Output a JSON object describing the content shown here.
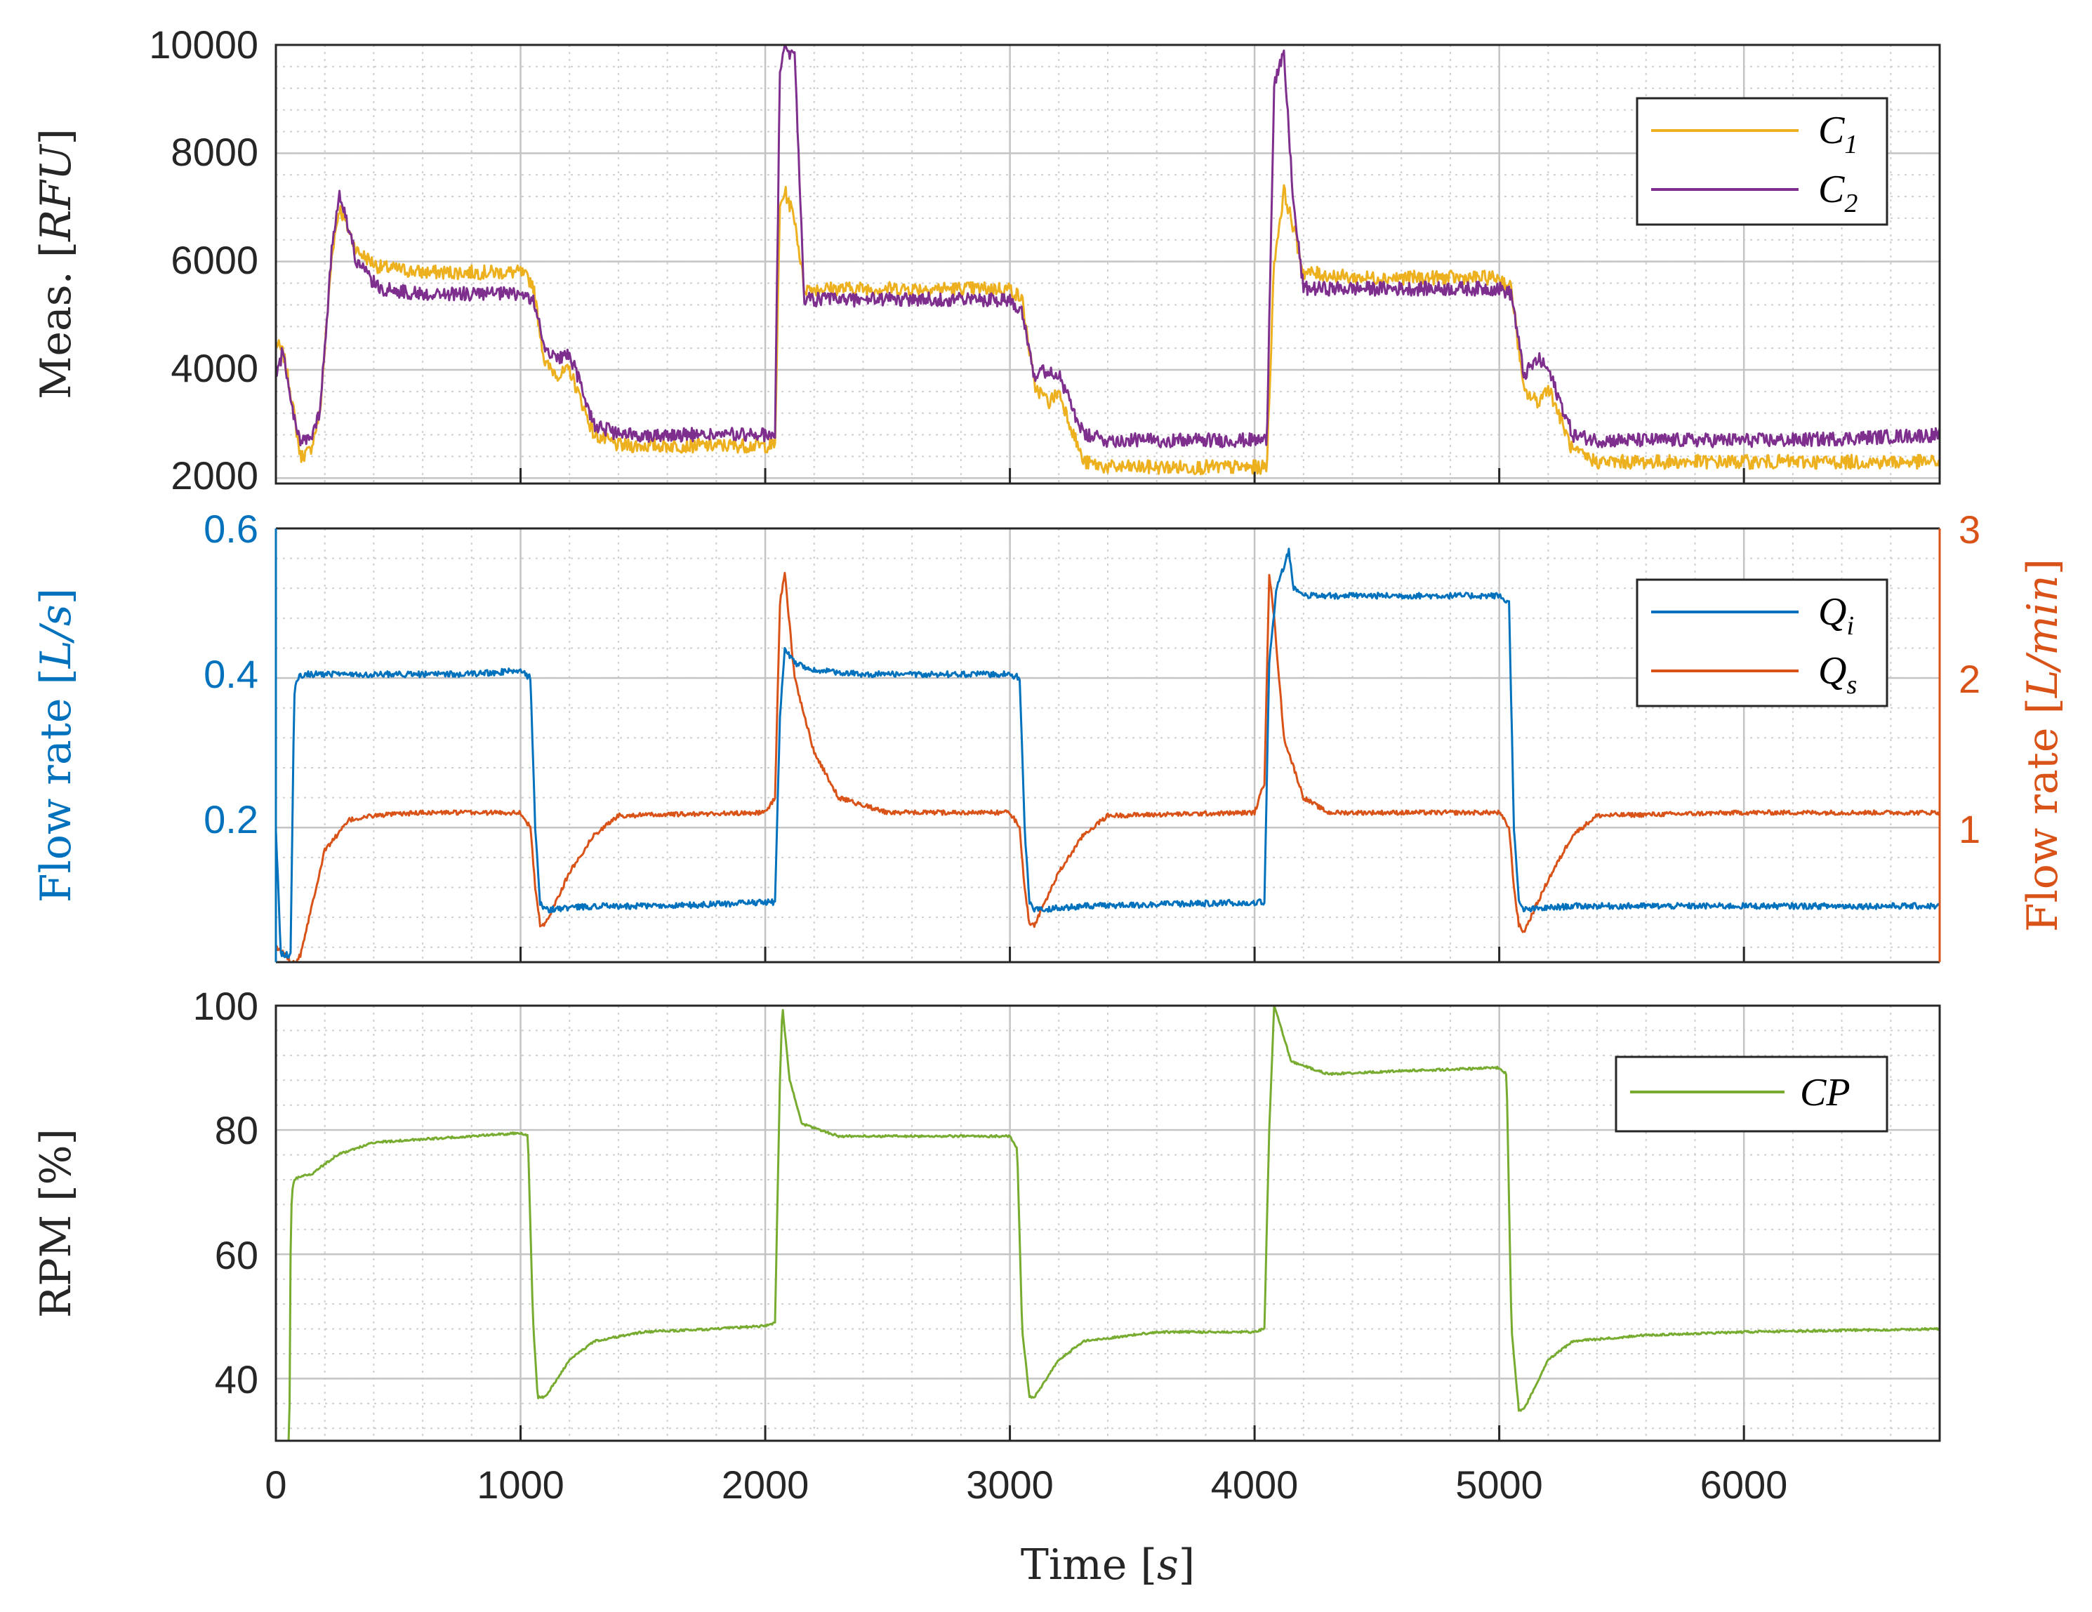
{
  "colors": {
    "C1": "#EDB120",
    "C2": "#7E2F8E",
    "Qi": "#0072BD",
    "Qs": "#D95319",
    "CP": "#77AC30",
    "axis": "#262626"
  },
  "xaxis": {
    "label": "Time",
    "unit": "s",
    "lim": [
      0,
      6800
    ],
    "ticks": [
      "0",
      "1000",
      "2000",
      "3000",
      "4000",
      "5000",
      "6000"
    ]
  },
  "panels": {
    "meas": {
      "ylabel_text": "Meas.",
      "ylabel_unit": "RFU",
      "ylim": [
        1900,
        10000
      ],
      "ticks": [
        "2000",
        "4000",
        "6000",
        "8000",
        "10000"
      ],
      "legend": [
        {
          "base": "C",
          "sub": "1"
        },
        {
          "base": "C",
          "sub": "2"
        }
      ]
    },
    "flow": {
      "ylabel_left_text": "Flow rate",
      "ylabel_left_unit": "L/s",
      "ylim_left": [
        0.02,
        0.6
      ],
      "ticks_left": [
        "0.2",
        "0.4",
        "0.6"
      ],
      "ylabel_right_text": "Flow rate",
      "ylabel_right_unit": "L/min",
      "ylim_right": [
        0.1,
        3
      ],
      "ticks_right": [
        "1",
        "2",
        "3"
      ],
      "legend": [
        {
          "base": "Q",
          "sub": "i"
        },
        {
          "base": "Q",
          "sub": "s"
        }
      ]
    },
    "rpm": {
      "ylabel_text": "RPM [%]",
      "ylim": [
        30,
        100
      ],
      "ticks": [
        "40",
        "60",
        "80",
        "100"
      ],
      "legend": [
        {
          "base": "CP",
          "sub": ""
        }
      ]
    }
  },
  "chart_data": [
    {
      "type": "line",
      "ylabel": "Meas. [RFU]",
      "series": [
        {
          "name": "C1",
          "x": [
            0,
            30,
            60,
            100,
            140,
            180,
            230,
            260,
            330,
            420,
            600,
            800,
            1000,
            1050,
            1100,
            1160,
            1200,
            1300,
            1400,
            1600,
            1800,
            2040,
            2060,
            2080,
            2120,
            2160,
            2200,
            2300,
            2600,
            3000,
            3050,
            3100,
            3160,
            3200,
            3300,
            3400,
            3700,
            4000,
            4050,
            4080,
            4120,
            4160,
            4200,
            4400,
            4800,
            5000,
            5050,
            5100,
            5160,
            5200,
            5300,
            5400,
            5800,
            6200,
            6800
          ],
          "y": [
            4500,
            4300,
            3600,
            2400,
            2500,
            3200,
            6200,
            7000,
            6200,
            5900,
            5800,
            5800,
            5800,
            5600,
            4100,
            3900,
            4000,
            2800,
            2600,
            2600,
            2600,
            2600,
            7000,
            7300,
            6800,
            5500,
            5500,
            5500,
            5500,
            5500,
            5300,
            3700,
            3400,
            3600,
            2300,
            2200,
            2200,
            2200,
            2200,
            6000,
            7300,
            6600,
            5800,
            5700,
            5700,
            5700,
            5500,
            3600,
            3400,
            3700,
            2500,
            2300,
            2300,
            2300,
            2300
          ]
        },
        {
          "name": "C2",
          "x": [
            0,
            30,
            60,
            100,
            140,
            180,
            230,
            260,
            330,
            420,
            600,
            800,
            1000,
            1050,
            1100,
            1160,
            1200,
            1300,
            1400,
            1600,
            1800,
            2040,
            2060,
            2080,
            2120,
            2160,
            2200,
            2300,
            2600,
            3000,
            3050,
            3100,
            3160,
            3200,
            3300,
            3400,
            3700,
            4000,
            4050,
            4080,
            4120,
            4160,
            4200,
            4400,
            4800,
            5000,
            5050,
            5100,
            5160,
            5200,
            5300,
            5400,
            5800,
            6200,
            6800
          ],
          "y": [
            3800,
            4400,
            3400,
            2700,
            2700,
            3200,
            6300,
            7300,
            6000,
            5500,
            5400,
            5400,
            5400,
            5300,
            4400,
            4200,
            4300,
            3000,
            2800,
            2800,
            2800,
            2800,
            9600,
            9900,
            9800,
            5300,
            5300,
            5300,
            5300,
            5300,
            5100,
            3900,
            4000,
            3900,
            2800,
            2700,
            2700,
            2700,
            2700,
            9300,
            9800,
            7000,
            5500,
            5500,
            5500,
            5500,
            5400,
            3900,
            4200,
            4000,
            2800,
            2700,
            2700,
            2700,
            2800
          ]
        }
      ]
    },
    {
      "type": "line",
      "ylabel_left": "Flow rate [L/s]",
      "ylabel_right": "Flow rate [L/min]",
      "series": [
        {
          "name": "Qi",
          "axis": "left",
          "x": [
            0,
            20,
            40,
            60,
            75,
            90,
            120,
            200,
            400,
            800,
            1000,
            1040,
            1060,
            1080,
            1100,
            1300,
            1600,
            2000,
            2040,
            2060,
            2080,
            2120,
            2200,
            2400,
            3000,
            3040,
            3060,
            3080,
            3100,
            3300,
            4000,
            4040,
            4060,
            4090,
            4140,
            4160,
            4220,
            4500,
            5000,
            5040,
            5060,
            5080,
            5100,
            5300,
            6000,
            6800
          ],
          "y": [
            0.2,
            0.03,
            0.03,
            0.03,
            0.38,
            0.4,
            0.405,
            0.405,
            0.405,
            0.405,
            0.41,
            0.4,
            0.2,
            0.1,
            0.09,
            0.095,
            0.095,
            0.1,
            0.1,
            0.35,
            0.44,
            0.42,
            0.41,
            0.405,
            0.405,
            0.4,
            0.2,
            0.1,
            0.09,
            0.095,
            0.1,
            0.1,
            0.42,
            0.52,
            0.57,
            0.52,
            0.51,
            0.51,
            0.51,
            0.5,
            0.2,
            0.1,
            0.09,
            0.095,
            0.095,
            0.095
          ]
        },
        {
          "name": "Qs",
          "axis": "right",
          "x": [
            0,
            40,
            60,
            80,
            100,
            150,
            200,
            300,
            400,
            600,
            1000,
            1040,
            1060,
            1080,
            1100,
            1200,
            1300,
            1400,
            2000,
            2040,
            2060,
            2080,
            2120,
            2200,
            2300,
            2500,
            3000,
            3040,
            3060,
            3080,
            3100,
            3200,
            3300,
            3400,
            4000,
            4040,
            4060,
            4080,
            4120,
            4200,
            4300,
            4500,
            5000,
            5040,
            5060,
            5080,
            5100,
            5200,
            5300,
            5400,
            6000,
            6800
          ],
          "y": [
            0.2,
            0.15,
            0.1,
            0.1,
            0.15,
            0.5,
            0.85,
            1.05,
            1.08,
            1.1,
            1.1,
            1.0,
            0.6,
            0.35,
            0.35,
            0.7,
            0.95,
            1.08,
            1.1,
            1.2,
            2.5,
            2.7,
            2.0,
            1.5,
            1.2,
            1.1,
            1.1,
            1.0,
            0.6,
            0.35,
            0.35,
            0.7,
            0.95,
            1.08,
            1.1,
            1.3,
            2.7,
            2.4,
            1.6,
            1.2,
            1.1,
            1.1,
            1.1,
            1.0,
            0.6,
            0.35,
            0.3,
            0.65,
            0.95,
            1.08,
            1.1,
            1.1
          ]
        }
      ]
    },
    {
      "type": "line",
      "ylabel": "RPM [%]",
      "series": [
        {
          "name": "CP",
          "x": [
            0,
            40,
            55,
            60,
            65,
            75,
            100,
            150,
            250,
            400,
            600,
            800,
            1000,
            1030,
            1050,
            1070,
            1100,
            1200,
            1300,
            1500,
            1800,
            2000,
            2040,
            2060,
            2070,
            2100,
            2150,
            2300,
            2600,
            3000,
            3030,
            3050,
            3080,
            3100,
            3200,
            3300,
            3600,
            4000,
            4040,
            4060,
            4080,
            4150,
            4300,
            4600,
            5000,
            5030,
            5050,
            5080,
            5100,
            5200,
            5300,
            5600,
            6000,
            6800
          ],
          "y": [
            29,
            29,
            30,
            60,
            70,
            72,
            72.5,
            73,
            76,
            78,
            78.5,
            79,
            79.5,
            79,
            50,
            37,
            37,
            43,
            46,
            47.5,
            48,
            48.5,
            49,
            88,
            100,
            88,
            81,
            79,
            79,
            79,
            77,
            48,
            37,
            37,
            43,
            46,
            47.5,
            47.5,
            48,
            80,
            100,
            91,
            89,
            89.5,
            90,
            89,
            48,
            35,
            35,
            43,
            46,
            47,
            47.5,
            48
          ]
        }
      ]
    }
  ]
}
